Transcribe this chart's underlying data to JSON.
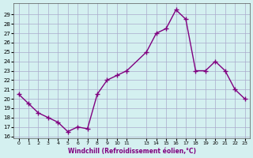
{
  "x": [
    0,
    1,
    2,
    3,
    4,
    5,
    6,
    7,
    8,
    9,
    10,
    11,
    13,
    14,
    15,
    16,
    17,
    18,
    19,
    20,
    21,
    22,
    23
  ],
  "y": [
    20.5,
    19.5,
    18.5,
    18.0,
    17.5,
    16.5,
    17.0,
    16.8,
    20.5,
    22.0,
    22.5,
    23.0,
    25.0,
    27.0,
    27.5,
    29.5,
    28.5,
    23.0,
    23.0,
    24.0,
    23.0,
    21.0,
    20.0
  ],
  "yticks": [
    16,
    17,
    18,
    19,
    20,
    21,
    22,
    23,
    24,
    25,
    26,
    27,
    28,
    29
  ],
  "xticks": [
    0,
    1,
    2,
    3,
    4,
    5,
    6,
    7,
    8,
    9,
    10,
    11,
    13,
    14,
    15,
    16,
    17,
    18,
    19,
    20,
    21,
    22,
    23
  ],
  "xlabel": "Windchill (Refroidissement éolien,°C)",
  "line_color": "#800080",
  "marker": "+",
  "bg_color": "#d4f0f0",
  "grid_color": "#aaaacc"
}
